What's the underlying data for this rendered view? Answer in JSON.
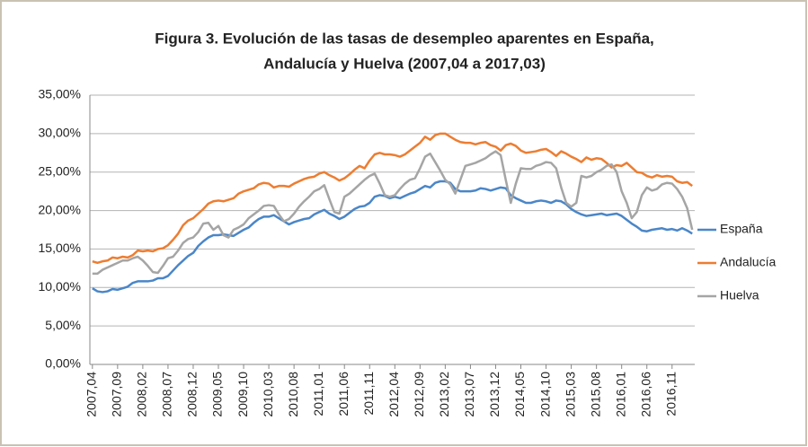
{
  "chart_data": {
    "type": "line",
    "title": [
      "Figura 3.  Evolución de las tasas de desempleo aparentes en España,",
      "Andalucía y Huelva (2007,04  a 2017,03)"
    ],
    "categories": [
      "2007,04",
      null,
      null,
      null,
      null,
      "2007,09",
      null,
      null,
      null,
      null,
      "2008,02",
      null,
      null,
      null,
      null,
      "2008,07",
      null,
      null,
      null,
      null,
      "2008,12",
      null,
      null,
      null,
      null,
      "2009,05",
      null,
      null,
      null,
      null,
      "2009,10",
      null,
      null,
      null,
      null,
      "2010,03",
      null,
      null,
      null,
      null,
      "2010,08",
      null,
      null,
      null,
      null,
      "2011,01",
      null,
      null,
      null,
      null,
      "2011,06",
      null,
      null,
      null,
      null,
      "2011,11",
      null,
      null,
      null,
      null,
      "2012,04",
      null,
      null,
      null,
      null,
      "2012,09",
      null,
      null,
      null,
      null,
      "2013,02",
      null,
      null,
      null,
      null,
      "2013,07",
      null,
      null,
      null,
      null,
      "2013,12",
      null,
      null,
      null,
      null,
      "2014,05",
      null,
      null,
      null,
      null,
      "2014,10",
      null,
      null,
      null,
      null,
      "2015,03",
      null,
      null,
      null,
      null,
      "2015,08",
      null,
      null,
      null,
      null,
      "2016,01",
      null,
      null,
      null,
      null,
      "2016,06",
      null,
      null,
      null,
      null,
      "2016,11",
      null,
      null,
      null,
      null
    ],
    "series": [
      {
        "name": "España",
        "color": "#4a86c8",
        "values": [
          9.9,
          9.5,
          9.4,
          9.5,
          9.8,
          9.7,
          9.9,
          10.1,
          10.6,
          10.8,
          10.8,
          10.8,
          10.9,
          11.2,
          11.2,
          11.5,
          12.2,
          12.9,
          13.5,
          14.1,
          14.5,
          15.4,
          16.0,
          16.5,
          16.8,
          16.8,
          16.9,
          16.8,
          16.7,
          17.1,
          17.5,
          17.8,
          18.4,
          18.9,
          19.2,
          19.2,
          19.4,
          19.0,
          18.6,
          18.2,
          18.5,
          18.7,
          18.9,
          19.0,
          19.5,
          19.8,
          20.1,
          19.6,
          19.3,
          18.9,
          19.2,
          19.7,
          20.2,
          20.5,
          20.6,
          21.0,
          21.8,
          22.0,
          21.9,
          21.6,
          21.8,
          21.6,
          21.9,
          22.2,
          22.4,
          22.8,
          23.2,
          23.0,
          23.6,
          23.8,
          23.8,
          23.6,
          22.8,
          22.5,
          22.5,
          22.5,
          22.6,
          22.9,
          22.8,
          22.6,
          22.8,
          23.0,
          22.9,
          22.0,
          21.6,
          21.3,
          21.0,
          21.0,
          21.2,
          21.3,
          21.2,
          21.0,
          21.3,
          21.2,
          20.8,
          20.2,
          19.8,
          19.5,
          19.3,
          19.4,
          19.5,
          19.6,
          19.4,
          19.5,
          19.6,
          19.3,
          18.8,
          18.3,
          17.9,
          17.4,
          17.3,
          17.5,
          17.6,
          17.7,
          17.5,
          17.6,
          17.4,
          17.7,
          17.4,
          17.0
        ]
      },
      {
        "name": "Andalucía",
        "color": "#ed7d31",
        "values": [
          13.4,
          13.2,
          13.4,
          13.5,
          13.9,
          13.8,
          14.0,
          13.9,
          14.2,
          14.8,
          14.7,
          14.8,
          14.7,
          15.0,
          15.1,
          15.5,
          16.2,
          17.0,
          18.1,
          18.7,
          19.0,
          19.6,
          20.2,
          20.9,
          21.2,
          21.3,
          21.2,
          21.4,
          21.6,
          22.2,
          22.5,
          22.7,
          22.9,
          23.4,
          23.6,
          23.5,
          23.0,
          23.2,
          23.2,
          23.1,
          23.5,
          23.8,
          24.1,
          24.3,
          24.4,
          24.8,
          25.0,
          24.6,
          24.3,
          23.9,
          24.2,
          24.7,
          25.3,
          25.8,
          25.5,
          26.5,
          27.3,
          27.5,
          27.3,
          27.3,
          27.2,
          27.0,
          27.3,
          27.8,
          28.3,
          28.8,
          29.6,
          29.2,
          29.8,
          30.0,
          30.0,
          29.6,
          29.2,
          28.9,
          28.8,
          28.8,
          28.6,
          28.8,
          28.9,
          28.5,
          28.3,
          27.8,
          28.5,
          28.7,
          28.4,
          27.8,
          27.5,
          27.6,
          27.7,
          27.9,
          28.0,
          27.6,
          27.1,
          27.7,
          27.4,
          27.0,
          26.7,
          26.3,
          26.9,
          26.6,
          26.8,
          26.7,
          26.2,
          25.6,
          25.9,
          25.8,
          26.2,
          25.6,
          25.0,
          24.9,
          24.5,
          24.3,
          24.6,
          24.4,
          24.5,
          24.4,
          23.8,
          23.6,
          23.7,
          23.2
        ]
      },
      {
        "name": "Huelva",
        "color": "#a5a5a5",
        "values": [
          11.8,
          11.8,
          12.3,
          12.6,
          12.9,
          13.2,
          13.5,
          13.5,
          13.8,
          14.0,
          13.5,
          12.8,
          12.0,
          11.9,
          12.8,
          13.8,
          14.0,
          14.8,
          15.8,
          16.3,
          16.5,
          17.2,
          18.3,
          18.4,
          17.5,
          18.0,
          16.8,
          16.5,
          17.5,
          17.8,
          18.2,
          19.0,
          19.5,
          20.0,
          20.6,
          20.7,
          20.6,
          19.5,
          18.6,
          18.9,
          19.6,
          20.5,
          21.2,
          21.8,
          22.5,
          22.8,
          23.3,
          21.5,
          19.8,
          19.6,
          21.8,
          22.2,
          22.8,
          23.4,
          24.0,
          24.5,
          24.8,
          23.5,
          22.0,
          21.8,
          22.0,
          22.8,
          23.5,
          24.0,
          24.2,
          25.5,
          27.0,
          27.4,
          26.3,
          25.2,
          24.0,
          23.4,
          22.2,
          24.0,
          25.8,
          26.0,
          26.2,
          26.5,
          26.8,
          27.3,
          27.7,
          27.2,
          24.0,
          21.0,
          23.5,
          25.5,
          25.4,
          25.4,
          25.8,
          26.0,
          26.3,
          26.2,
          25.5,
          23.0,
          21.0,
          20.5,
          21.0,
          24.5,
          24.3,
          24.5,
          25.0,
          25.3,
          25.8,
          26.0,
          25.0,
          22.5,
          21.0,
          19.0,
          19.8,
          22.0,
          23.0,
          22.6,
          22.8,
          23.4,
          23.6,
          23.5,
          22.8,
          21.8,
          20.3,
          17.5
        ]
      }
    ],
    "ylim": [
      0,
      35
    ],
    "yticks": [
      {
        "value": 0,
        "label": "0,00%"
      },
      {
        "value": 5,
        "label": "5,00%"
      },
      {
        "value": 10,
        "label": "10,00%"
      },
      {
        "value": 15,
        "label": "15,00%"
      },
      {
        "value": 20,
        "label": "20,00%"
      },
      {
        "value": 25,
        "label": "25,00%"
      },
      {
        "value": 30,
        "label": "30,00%"
      },
      {
        "value": 35,
        "label": "35,00%"
      }
    ],
    "grid": true,
    "legend": "right"
  }
}
